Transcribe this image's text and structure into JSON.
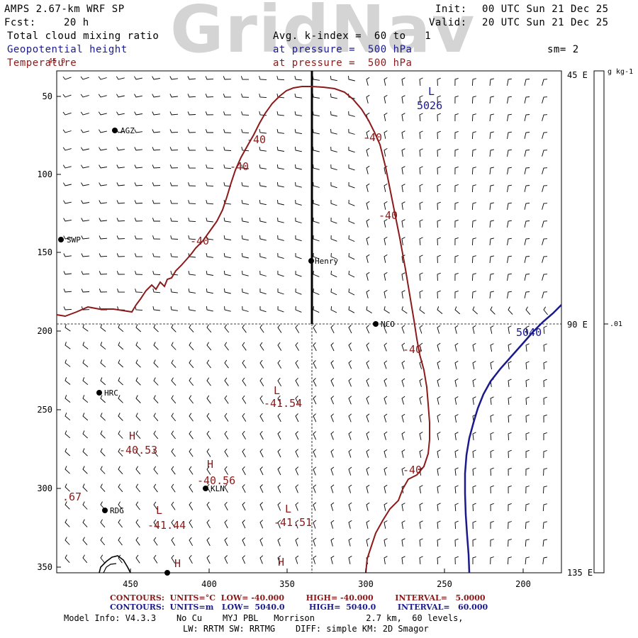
{
  "watermark": "GridNav",
  "header": {
    "model": "AMPS 2.67-km WRF SP",
    "init_label": "Init:",
    "init_value": "00 UTC Sun 21 Dec 25",
    "fcst_label": "Fcst:",
    "fcst_value": "20 h",
    "valid_label": "Valid:",
    "valid_value": "20 UTC Sun 21 Dec 25",
    "fields": [
      {
        "name": "Total cloud mixing ratio",
        "color": "#000000",
        "info": "Avg. k-index =  60 to   1"
      },
      {
        "name": "Geopotential height",
        "color": "#1a1a8c",
        "info": "at pressure =  500 hPa"
      },
      {
        "name": "Temperature",
        "color": "#8b1a1a",
        "info": "at pressure =  500 hPa"
      }
    ],
    "smoothing": "sm= 2",
    "corner_value": "45.0"
  },
  "axes": {
    "y_ticks": [
      "50",
      "100",
      "150",
      "200",
      "250",
      "300",
      "350"
    ],
    "x_ticks": [
      "450",
      "400",
      "350",
      "300",
      "250",
      "200"
    ],
    "right_ticks": [
      "45 E",
      "90 E",
      "135 E"
    ]
  },
  "colorbar": {
    "units": "g kg-1",
    "value": ".01"
  },
  "stations": [
    {
      "name": "AGZ"
    },
    {
      "name": "SWP"
    },
    {
      "name": "Henry"
    },
    {
      "name": "NCO"
    },
    {
      "name": "HRC"
    },
    {
      "name": "KLN"
    },
    {
      "name": "RDG"
    }
  ],
  "contour_labels": {
    "temperature": [
      "-40",
      "-40",
      "-40",
      "-40",
      "-40",
      "-40",
      "-40"
    ],
    "height": [
      "5026",
      "5040"
    ],
    "extrema": [
      {
        "kind": "L",
        "value": ""
      },
      {
        "kind": "L",
        "value": "-41.54"
      },
      {
        "kind": "H",
        "value": "-40.53"
      },
      {
        "kind": "H",
        "value": "-40.56"
      },
      {
        "kind": "L",
        "value": "-41.44"
      },
      {
        "kind": "L",
        "value": "-41.51"
      },
      {
        "kind": "H",
        "value": ""
      },
      {
        "kind": "H",
        "value": ""
      }
    ],
    "misc": ".67"
  },
  "footer": {
    "temp_contours": "CONTOURS:  UNITS=°C  LOW= -40.000        HIGH= -40.000        INTERVAL=   5.0000",
    "hgt_contours": "CONTOURS:  UNITS=m   LOW=  5040.0         HIGH=  5040.0        INTERVAL=   60.000",
    "model_info": "Model Info: V4.3.3    No Cu    MYJ PBL   Morrison          2.7 km,  60 levels,",
    "model_info2": "LW: RRTM SW: RRTMG    DIFF: simple KM: 2D Smagor"
  },
  "colors": {
    "temperature": "#8b1a1a",
    "height": "#1a1a8c",
    "cloud": "#000000"
  }
}
